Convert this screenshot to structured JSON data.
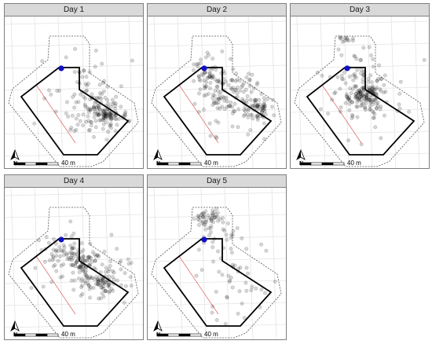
{
  "panels": [
    {
      "title": "Day 1"
    },
    {
      "title": "Day 2"
    },
    {
      "title": "Day 3"
    },
    {
      "title": "Day 4"
    },
    {
      "title": "Day 5"
    }
  ],
  "scale_bar": {
    "label": "40 m"
  },
  "north_arrow": {
    "label": "N"
  },
  "colors": {
    "strip_bg": "#d9d9d9",
    "points": "#000000",
    "marker": "#1010c8",
    "boundary": "#000000",
    "buffer": "#555555",
    "transect": "#e06060",
    "grid": "#e3e3e3"
  },
  "icons": [
    "north-arrow-icon",
    "scale-bar-icon"
  ]
}
